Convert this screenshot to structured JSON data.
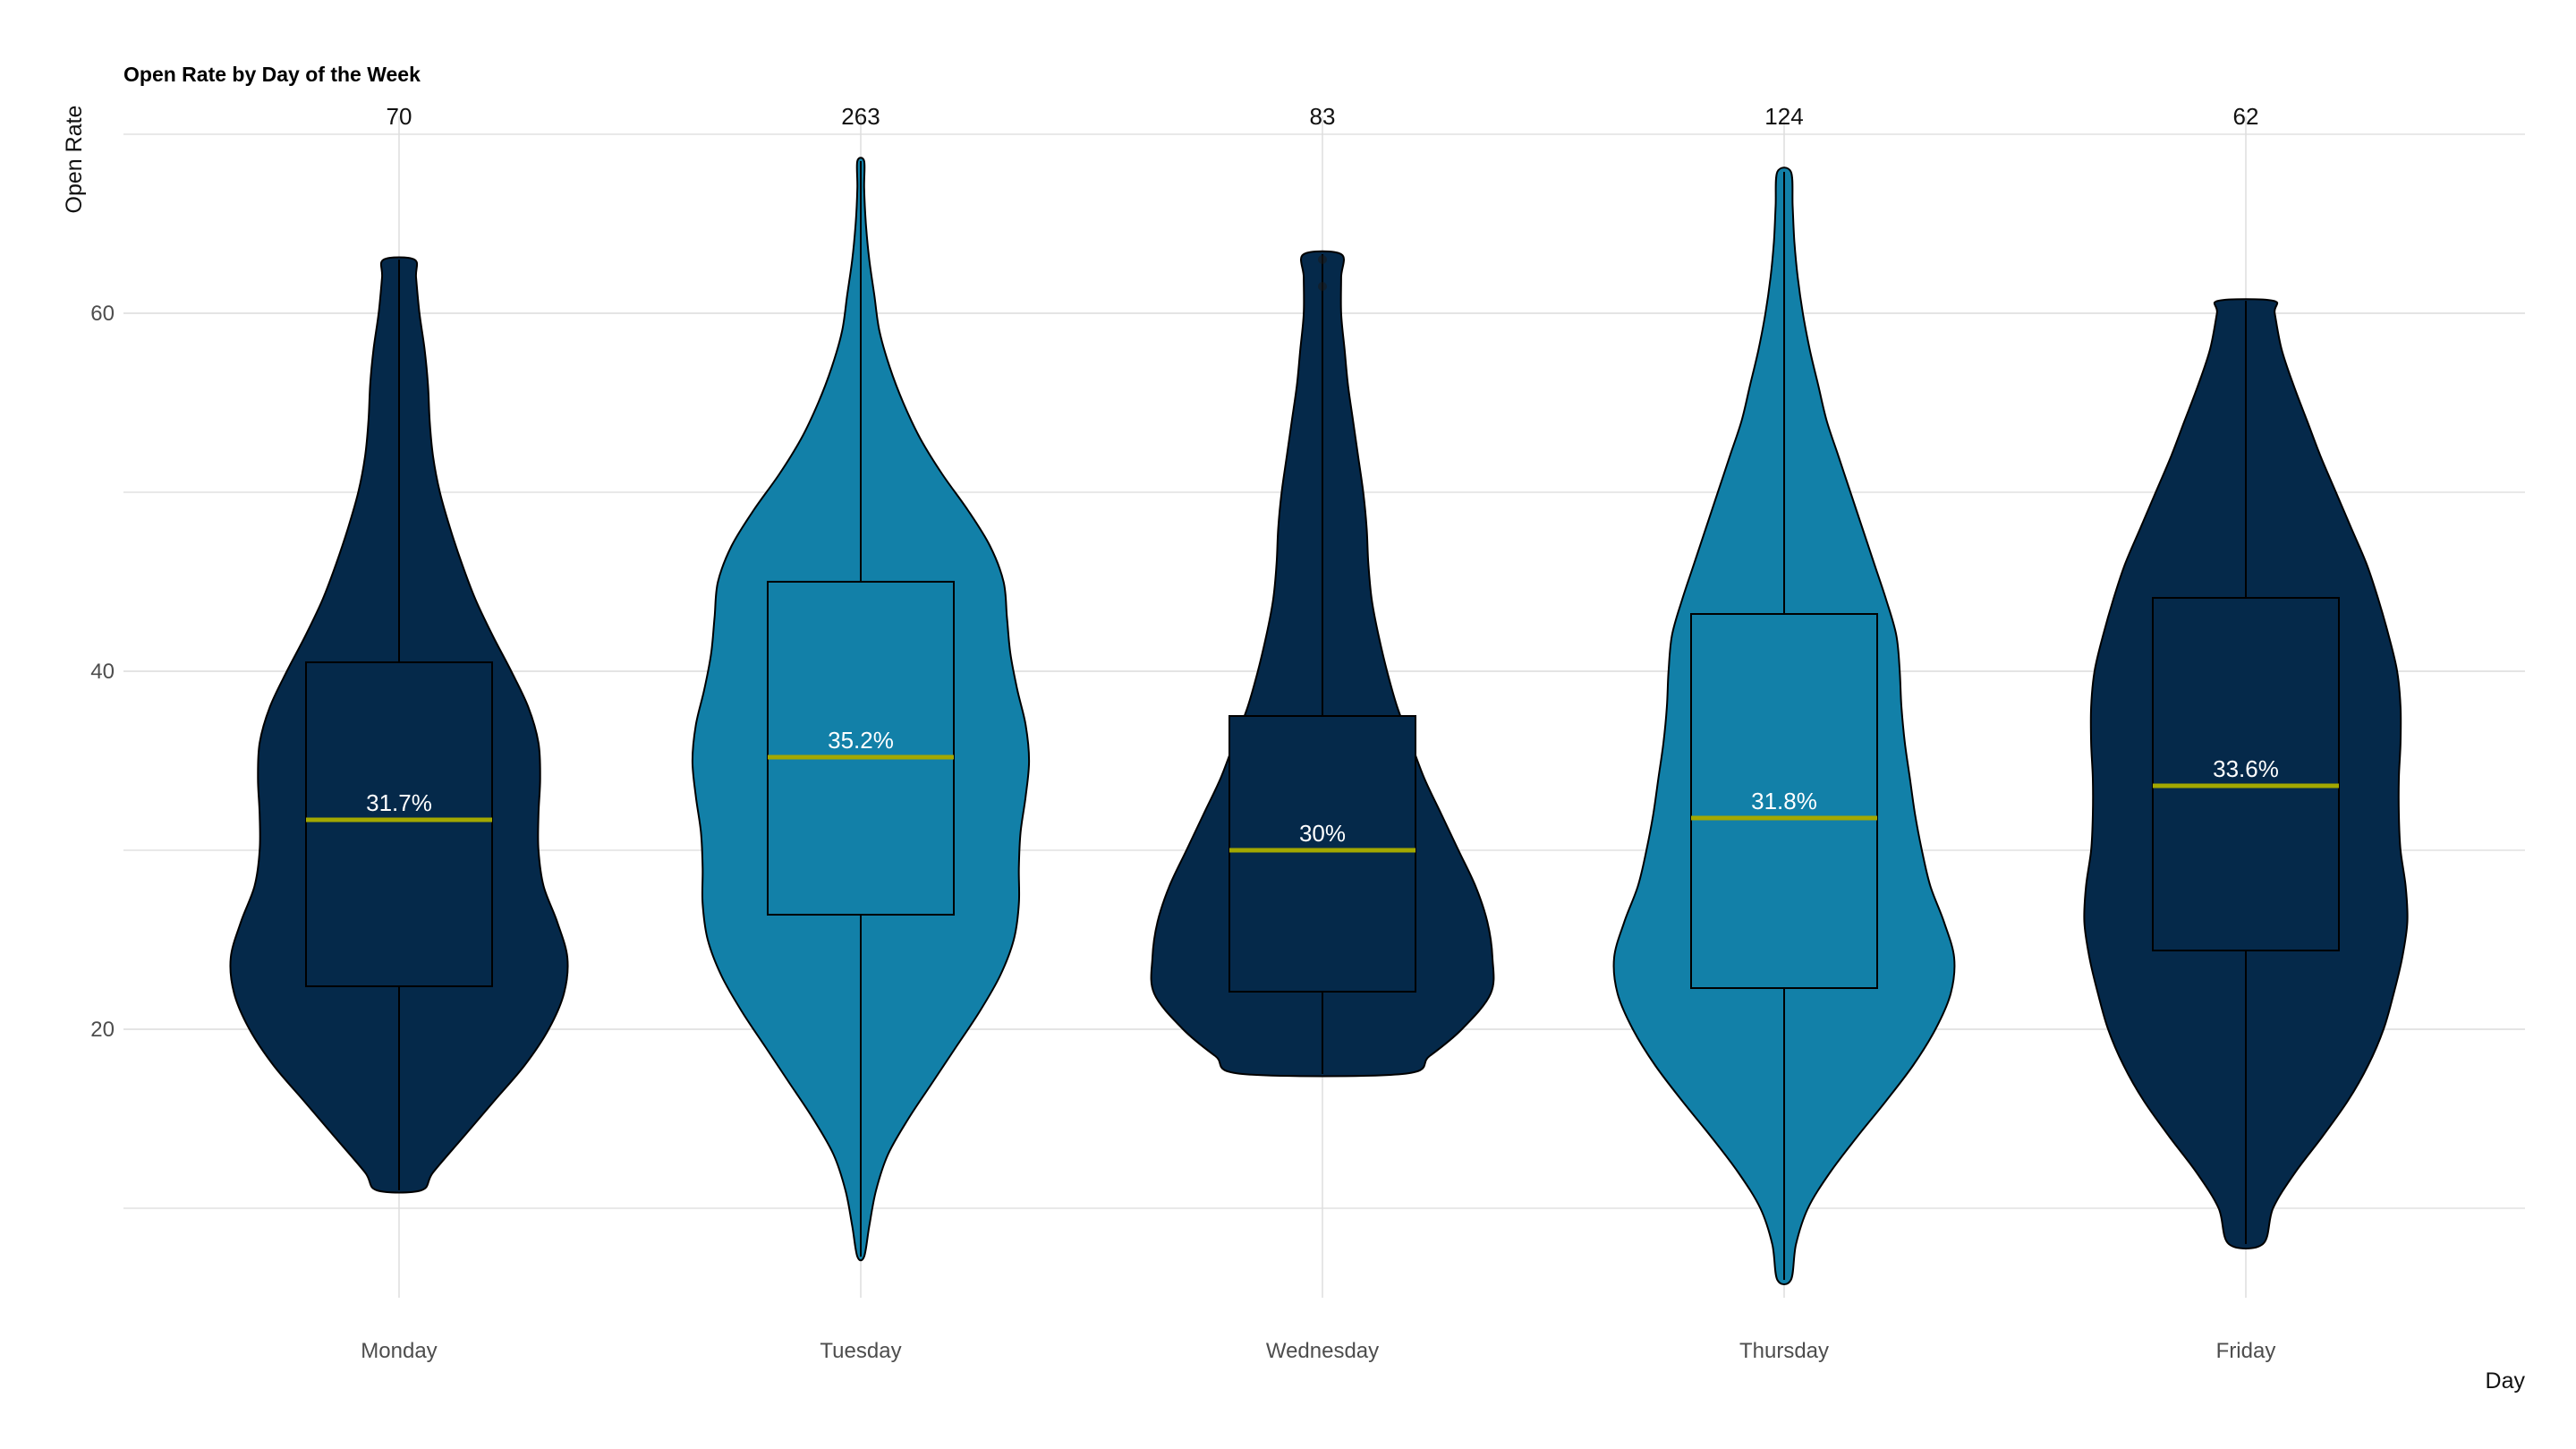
{
  "chart_data": {
    "type": "violin",
    "title": "Open Rate by Day of the Week",
    "xlabel": "Day",
    "ylabel": "Open Rate",
    "ylim": [
      5,
      71
    ],
    "yticks": [
      20,
      40,
      60
    ],
    "grid": true,
    "categories": [
      "Monday",
      "Tuesday",
      "Wednesday",
      "Thursday",
      "Friday"
    ],
    "colors": {
      "dark": "#05294a",
      "light": "#1280a8",
      "median": "#a3a800",
      "grid": "#dcdcdc"
    },
    "series": [
      {
        "category": "Monday",
        "count": "70",
        "median_label": "31.7%",
        "fill": "#05294a",
        "min": 11,
        "q1": 22.4,
        "median": 31.7,
        "q3": 40.5,
        "max": 63,
        "density": [
          [
            11,
            0.13
          ],
          [
            12,
            0.2
          ],
          [
            14,
            0.38
          ],
          [
            16,
            0.56
          ],
          [
            18,
            0.74
          ],
          [
            20,
            0.88
          ],
          [
            22,
            0.97
          ],
          [
            24,
            0.99
          ],
          [
            26,
            0.93
          ],
          [
            28,
            0.85
          ],
          [
            30,
            0.82
          ],
          [
            32,
            0.82
          ],
          [
            34,
            0.83
          ],
          [
            36,
            0.82
          ],
          [
            38,
            0.76
          ],
          [
            40,
            0.66
          ],
          [
            42,
            0.55
          ],
          [
            44,
            0.45
          ],
          [
            46,
            0.37
          ],
          [
            48,
            0.3
          ],
          [
            50,
            0.24
          ],
          [
            52,
            0.2
          ],
          [
            54,
            0.18
          ],
          [
            56,
            0.17
          ],
          [
            58,
            0.15
          ],
          [
            60,
            0.12
          ],
          [
            62,
            0.1
          ],
          [
            63,
            0.09
          ]
        ]
      },
      {
        "category": "Tuesday",
        "count": "263",
        "median_label": "35.2%",
        "fill": "#1280a8",
        "min": 7.3,
        "q1": 26.4,
        "median": 35.2,
        "q3": 45,
        "max": 68.5,
        "density": [
          [
            7.3,
            0.02
          ],
          [
            9,
            0.05
          ],
          [
            11,
            0.09
          ],
          [
            13,
            0.16
          ],
          [
            15,
            0.28
          ],
          [
            17,
            0.42
          ],
          [
            19,
            0.56
          ],
          [
            21,
            0.7
          ],
          [
            23,
            0.82
          ],
          [
            25,
            0.9
          ],
          [
            27,
            0.93
          ],
          [
            29,
            0.93
          ],
          [
            31,
            0.94
          ],
          [
            33,
            0.97
          ],
          [
            35,
            0.99
          ],
          [
            37,
            0.97
          ],
          [
            39,
            0.92
          ],
          [
            41,
            0.88
          ],
          [
            43,
            0.86
          ],
          [
            45,
            0.84
          ],
          [
            47,
            0.76
          ],
          [
            49,
            0.63
          ],
          [
            51,
            0.48
          ],
          [
            53,
            0.35
          ],
          [
            55,
            0.25
          ],
          [
            57,
            0.17
          ],
          [
            59,
            0.11
          ],
          [
            61,
            0.08
          ],
          [
            63,
            0.05
          ],
          [
            65,
            0.03
          ],
          [
            67,
            0.02
          ],
          [
            68.5,
            0.02
          ]
        ]
      },
      {
        "category": "Wednesday",
        "count": "83",
        "median_label": "30%",
        "fill": "#05294a",
        "min": 17.5,
        "q1": 22.1,
        "median": 30,
        "q3": 37.5,
        "max": 63.3,
        "outliers": [
          61.5,
          63
        ],
        "density": [
          [
            17.5,
            0.47
          ],
          [
            18.5,
            0.63
          ],
          [
            20,
            0.82
          ],
          [
            22,
            0.99
          ],
          [
            24,
            1.0
          ],
          [
            26,
            0.97
          ],
          [
            28,
            0.9
          ],
          [
            30,
            0.8
          ],
          [
            32,
            0.7
          ],
          [
            34,
            0.6
          ],
          [
            36,
            0.52
          ],
          [
            38,
            0.44
          ],
          [
            40,
            0.38
          ],
          [
            42,
            0.33
          ],
          [
            44,
            0.29
          ],
          [
            46,
            0.27
          ],
          [
            48,
            0.26
          ],
          [
            50,
            0.24
          ],
          [
            52,
            0.21
          ],
          [
            54,
            0.18
          ],
          [
            56,
            0.15
          ],
          [
            58,
            0.13
          ],
          [
            60,
            0.11
          ],
          [
            62,
            0.11
          ],
          [
            63.3,
            0.11
          ]
        ]
      },
      {
        "category": "Thursday",
        "count": "124",
        "median_label": "31.8%",
        "fill": "#1280a8",
        "min": 6,
        "q1": 22.3,
        "median": 31.8,
        "q3": 43.2,
        "max": 67.9,
        "density": [
          [
            6,
            0.04
          ],
          [
            8,
            0.07
          ],
          [
            10,
            0.14
          ],
          [
            12,
            0.27
          ],
          [
            14,
            0.43
          ],
          [
            16,
            0.6
          ],
          [
            18,
            0.76
          ],
          [
            20,
            0.89
          ],
          [
            22,
            0.98
          ],
          [
            24,
            1.0
          ],
          [
            26,
            0.94
          ],
          [
            28,
            0.86
          ],
          [
            30,
            0.81
          ],
          [
            32,
            0.77
          ],
          [
            34,
            0.74
          ],
          [
            36,
            0.71
          ],
          [
            38,
            0.69
          ],
          [
            40,
            0.68
          ],
          [
            42,
            0.66
          ],
          [
            44,
            0.6
          ],
          [
            46,
            0.53
          ],
          [
            48,
            0.46
          ],
          [
            50,
            0.39
          ],
          [
            52,
            0.32
          ],
          [
            54,
            0.25
          ],
          [
            56,
            0.2
          ],
          [
            58,
            0.15
          ],
          [
            60,
            0.11
          ],
          [
            62,
            0.08
          ],
          [
            64,
            0.06
          ],
          [
            66,
            0.05
          ],
          [
            67.9,
            0.04
          ]
        ]
      },
      {
        "category": "Friday",
        "count": "62",
        "median_label": "33.6%",
        "fill": "#05294a",
        "min": 8,
        "q1": 24.4,
        "median": 33.6,
        "q3": 44.1,
        "max": 60.7,
        "density": [
          [
            8,
            0.1
          ],
          [
            10,
            0.16
          ],
          [
            12,
            0.29
          ],
          [
            14,
            0.45
          ],
          [
            16,
            0.6
          ],
          [
            18,
            0.72
          ],
          [
            20,
            0.81
          ],
          [
            22,
            0.87
          ],
          [
            24,
            0.92
          ],
          [
            26,
            0.95
          ],
          [
            28,
            0.94
          ],
          [
            30,
            0.91
          ],
          [
            32,
            0.9
          ],
          [
            34,
            0.9
          ],
          [
            36,
            0.91
          ],
          [
            38,
            0.91
          ],
          [
            40,
            0.89
          ],
          [
            42,
            0.84
          ],
          [
            44,
            0.78
          ],
          [
            46,
            0.71
          ],
          [
            48,
            0.62
          ],
          [
            50,
            0.53
          ],
          [
            52,
            0.44
          ],
          [
            54,
            0.36
          ],
          [
            56,
            0.28
          ],
          [
            58,
            0.21
          ],
          [
            60,
            0.17
          ],
          [
            60.7,
            0.16
          ]
        ]
      }
    ]
  }
}
